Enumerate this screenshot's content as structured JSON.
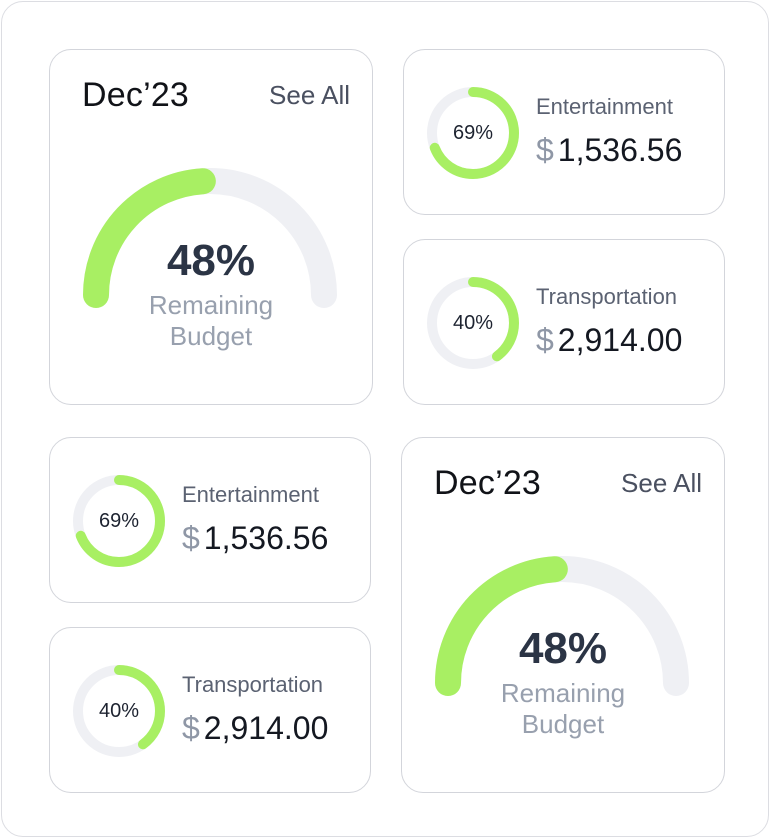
{
  "theme": {
    "accent": "#a8ef63",
    "track": "#eff0f4",
    "border": "#d3d5db"
  },
  "budget_widget": {
    "period": "Dec’23",
    "see_all": "See All",
    "percent_value": 48,
    "percent_label": "48%",
    "caption_line1": "Remaining",
    "caption_line2": "Budget"
  },
  "categories": [
    {
      "name": "Entertainment",
      "percent_value": 69,
      "percent_label": "69%",
      "currency": "$",
      "amount": "1,536.56"
    },
    {
      "name": "Transportation",
      "percent_value": 40,
      "percent_label": "40%",
      "currency": "$",
      "amount": "2,914.00"
    }
  ]
}
